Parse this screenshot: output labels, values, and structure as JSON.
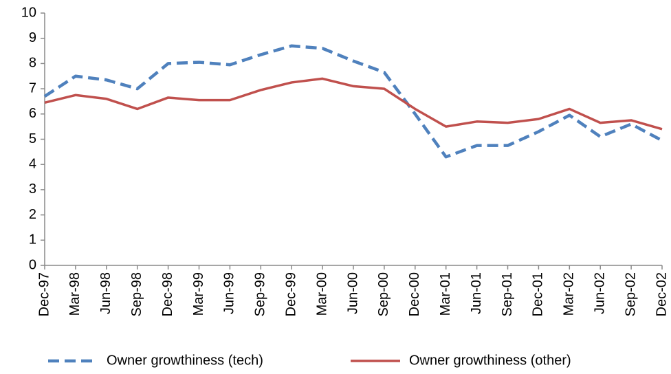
{
  "chart_data": {
    "type": "line",
    "categories": [
      "Dec-97",
      "Mar-98",
      "Jun-98",
      "Sep-98",
      "Dec-98",
      "Mar-99",
      "Jun-99",
      "Sep-99",
      "Dec-99",
      "Mar-00",
      "Jun-00",
      "Sep-00",
      "Dec-00",
      "Mar-01",
      "Jun-01",
      "Sep-01",
      "Dec-01",
      "Mar-02",
      "Jun-02",
      "Sep-02",
      "Dec-02"
    ],
    "series": [
      {
        "name": "Owner growthiness (tech)",
        "color": "#4f81bd",
        "dash": true,
        "values": [
          6.7,
          7.5,
          7.35,
          7.0,
          8.0,
          8.05,
          7.95,
          8.35,
          8.7,
          8.6,
          8.1,
          7.65,
          6.0,
          4.3,
          4.75,
          4.75,
          5.3,
          5.95,
          5.1,
          5.6,
          4.95
        ]
      },
      {
        "name": "Owner growthiness (other)",
        "color": "#c0504d",
        "dash": false,
        "values": [
          6.45,
          6.75,
          6.6,
          6.2,
          6.65,
          6.55,
          6.55,
          6.95,
          7.25,
          7.4,
          7.1,
          7.0,
          6.2,
          5.5,
          5.7,
          5.65,
          5.8,
          6.2,
          5.65,
          5.75,
          5.4
        ]
      }
    ],
    "ylim": [
      0,
      10
    ],
    "yticks": [
      0,
      1,
      2,
      3,
      4,
      5,
      6,
      7,
      8,
      9,
      10
    ],
    "grid": false,
    "legend": "bottom"
  }
}
